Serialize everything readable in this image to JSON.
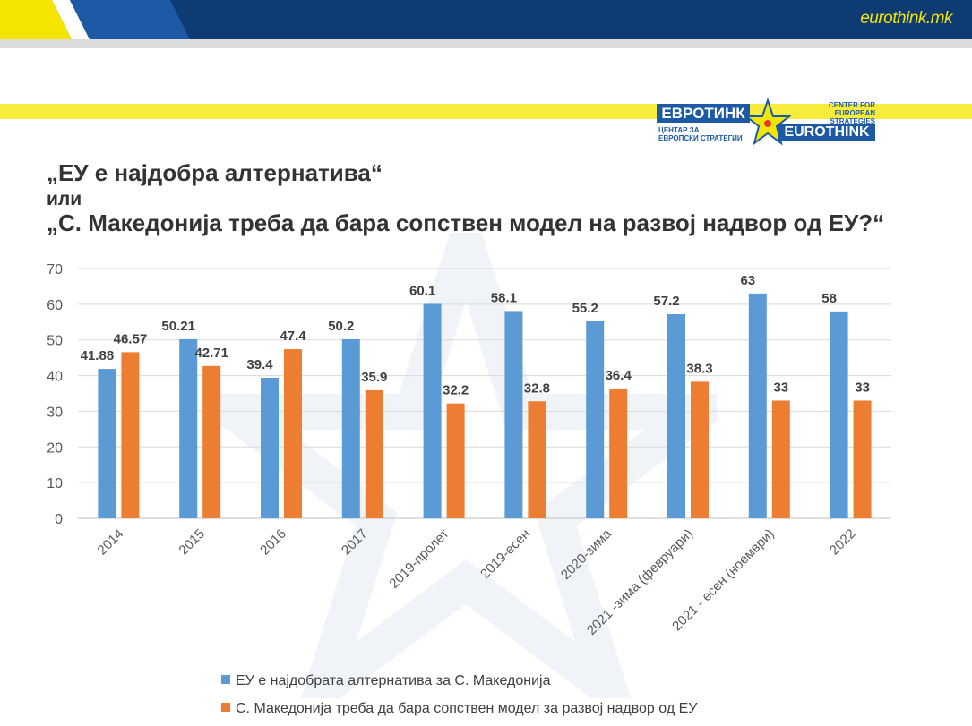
{
  "header": {
    "site_url": "eurothink.mk",
    "colors": {
      "top_bar_navy": "#0f3b74",
      "top_bar_blue": "#1d5aa6",
      "top_bar_yellow": "#f3e500",
      "band_yellow": "#f7ec3c"
    }
  },
  "logo": {
    "cyrillic_name": "ЕВРОТИНК",
    "cyrillic_subtitle_1": "ЦЕНТАР ЗА",
    "cyrillic_subtitle_2": "ЕВРОПСКИ СТРАТЕГИИ",
    "latin_name": "EUROTHINK",
    "english_subtitle_1": "CENTER FOR",
    "english_subtitle_2": "EUROPEAN STRATEGIES",
    "icon": "star-icon"
  },
  "titles": {
    "line1": "„ЕУ е најдобра алтернатива“",
    "line2": "или",
    "line3": "„С. Македонија треба да бара сопствен модел на развој надвор од ЕУ?“"
  },
  "chart_data": {
    "type": "bar",
    "categories": [
      "2014",
      "2015",
      "2016",
      "2017",
      "2019-пролет",
      "2019-есен",
      "2020-зима",
      "2021 -зима (февруари)",
      "2021 - есен (ноември)",
      "2022"
    ],
    "series": [
      {
        "name": "ЕУ е најдобрата алтернатива за С. Македонија",
        "color": "#5b9bd5",
        "values": [
          41.88,
          50.21,
          39.4,
          50.2,
          60.1,
          58.1,
          55.2,
          57.2,
          63,
          58
        ],
        "labels": [
          "41.88",
          "50.21",
          "39.4",
          "50.2",
          "60.1",
          "58.1",
          "55.2",
          "57.2",
          "63",
          "58"
        ]
      },
      {
        "name": "С. Македонија треба да бара сопствен модел за развој надвор од ЕУ",
        "color": "#ed7d31",
        "values": [
          46.57,
          42.71,
          47.4,
          35.9,
          32.2,
          32.8,
          36.4,
          38.3,
          33,
          33
        ],
        "labels": [
          "46.57",
          "42.71",
          "47.4",
          "35.9",
          "32.2",
          "32.8",
          "36.4",
          "38.3",
          "33",
          "33"
        ]
      }
    ],
    "ylim": [
      0,
      70
    ],
    "yticks": [
      "0",
      "10",
      "20",
      "30",
      "40",
      "50",
      "60",
      "70"
    ],
    "grid": true,
    "legend_position": "bottom"
  }
}
